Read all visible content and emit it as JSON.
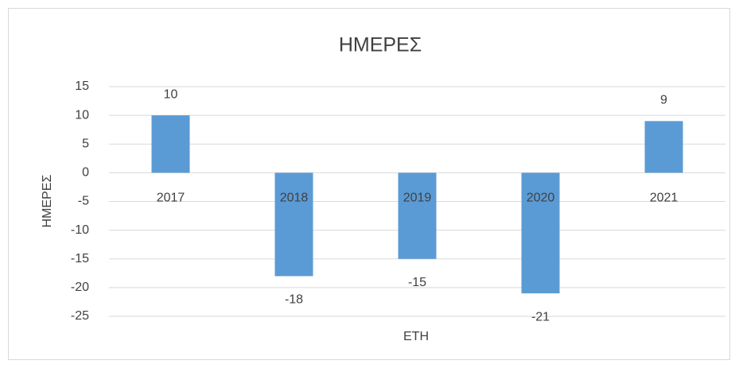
{
  "chart_data": {
    "type": "bar",
    "title": "ΗΜΕΡΕΣ",
    "x_label": "ΕΤΗ",
    "y_label": "ΗΜΕΡΕΣ",
    "categories": [
      "2017",
      "2018",
      "2019",
      "2020",
      "2021"
    ],
    "values": [
      10,
      -18,
      -15,
      -21,
      9
    ],
    "color": "#5b9bd5",
    "ylim": [
      -25,
      15
    ],
    "yticks": [
      -25,
      -20,
      -15,
      -10,
      -5,
      0,
      5,
      10,
      15
    ],
    "grid": true
  }
}
